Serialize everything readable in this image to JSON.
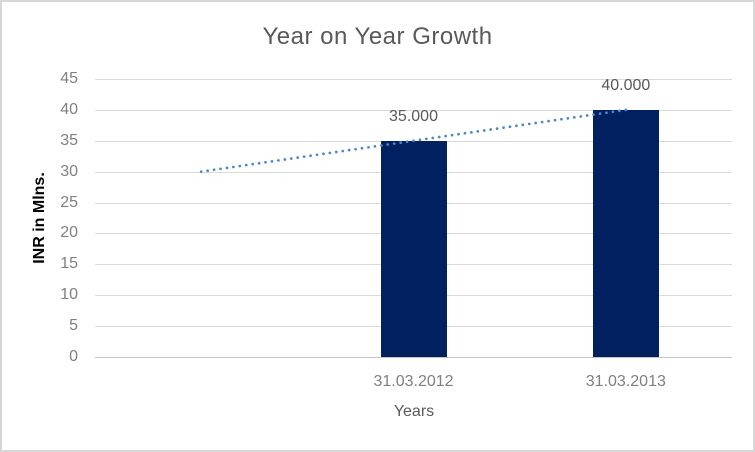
{
  "chart": {
    "background": "#ffffff",
    "border_color": "#d7d7d7"
  },
  "chart_data": {
    "type": "bar",
    "title": "Year on Year Growth",
    "xlabel": "Years",
    "ylabel": "INR in Mlns.",
    "categories": [
      "31.03.2012",
      "31.03.2013"
    ],
    "values": [
      35,
      40
    ],
    "data_labels": [
      "35.000",
      "40.000"
    ],
    "bar_color": "#002060",
    "yticks": [
      0,
      5,
      10,
      15,
      20,
      25,
      30,
      35,
      40,
      45
    ],
    "ylim": [
      0,
      45
    ],
    "grid": true,
    "legend": false,
    "trendline": {
      "style": "dotted",
      "color": "#4e86c8",
      "values_at_slots": [
        30,
        35,
        40
      ],
      "description": "Dotted linear trend line rising from 30 (one slot left of first bar) through 35 at first bar to 40 at second bar"
    },
    "text_colors": {
      "title": "#595959",
      "tick_labels": "#808080",
      "axis_titles": "#595959",
      "data_labels": "#595959",
      "y_axis_title": "#000000"
    }
  }
}
